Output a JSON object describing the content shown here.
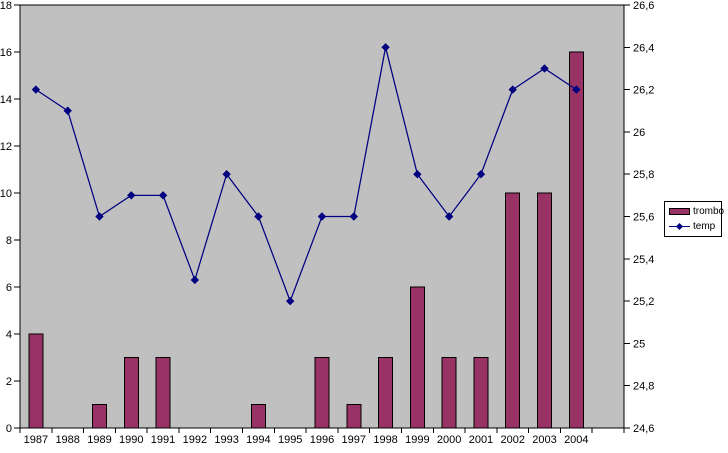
{
  "chart_data": {
    "type": "bar",
    "subtype": "combo-bar-line",
    "categories": [
      "1987",
      "1988",
      "1989",
      "1990",
      "1991",
      "1992",
      "1993",
      "1994",
      "1995",
      "1996",
      "1997",
      "1998",
      "1999",
      "2000",
      "2001",
      "2002",
      "2003",
      "2004"
    ],
    "series": [
      {
        "name": "trombo",
        "kind": "bar",
        "axis": "left",
        "color": "#993366",
        "values": [
          4,
          0,
          1,
          3,
          3,
          0,
          0,
          1,
          0,
          3,
          1,
          3,
          6,
          3,
          3,
          10,
          10,
          16
        ]
      },
      {
        "name": "temp",
        "kind": "line",
        "axis": "right",
        "color": "#000080",
        "marker": "diamond",
        "values": [
          26.2,
          26.1,
          25.6,
          25.7,
          25.7,
          25.3,
          25.8,
          25.6,
          25.2,
          25.6,
          25.6,
          26.4,
          25.8,
          25.6,
          25.8,
          26.2,
          26.3,
          26.2
        ]
      }
    ],
    "left_axis": {
      "min": 0,
      "max": 18,
      "step": 2,
      "tick_labels": [
        "0",
        "2",
        "4",
        "6",
        "8",
        "10",
        "12",
        "14",
        "16",
        "18"
      ]
    },
    "right_axis": {
      "min": 24.6,
      "max": 26.6,
      "step": 0.2,
      "tick_labels": [
        "24,6",
        "24,8",
        "25",
        "25,2",
        "25,4",
        "25,6",
        "25,8",
        "26",
        "26,2",
        "26,4",
        "26,6"
      ]
    },
    "legend": {
      "position": "right",
      "entries": [
        "trombo",
        "temp"
      ]
    },
    "plot_bg_color": "#C0C0C0",
    "axis_color": "#000000",
    "grid": false,
    "trailing_empty_slot": true
  }
}
